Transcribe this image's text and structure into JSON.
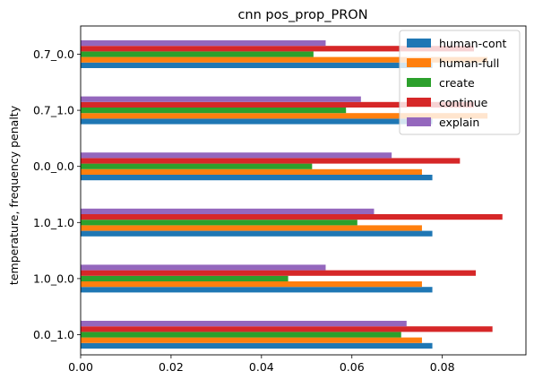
{
  "chart_data": {
    "type": "bar",
    "orientation": "horizontal",
    "title": "cnn pos_prop_PRON",
    "xlabel": "",
    "ylabel": "temperature, frequency penalty",
    "categories": [
      "0.0_1.0",
      "1.0_0.0",
      "1.0_1.0",
      "0.0_0.0",
      "0.7_1.0",
      "0.7_0.0"
    ],
    "xlim": [
      0,
      0.0985
    ],
    "xticks": [
      0.0,
      0.02,
      0.04,
      0.06,
      0.08
    ],
    "xtick_labels": [
      "0.00",
      "0.02",
      "0.04",
      "0.06",
      "0.08"
    ],
    "grid": false,
    "legend_position": "top-right",
    "series": [
      {
        "name": "human-cont",
        "color": "#1f77b4",
        "values": [
          0.0778,
          0.0778,
          0.0778,
          0.0778,
          0.0778,
          0.0778
        ]
      },
      {
        "name": "human-full",
        "color": "#ff7f0e",
        "values": [
          0.0755,
          0.0755,
          0.0755,
          0.0755,
          0.09,
          0.09
        ]
      },
      {
        "name": "create",
        "color": "#2ca02c",
        "values": [
          0.0709,
          0.0459,
          0.0612,
          0.0512,
          0.0587,
          0.0515
        ]
      },
      {
        "name": "continue",
        "color": "#d62728",
        "values": [
          0.0911,
          0.0874,
          0.0933,
          0.0839,
          0.087,
          0.087
        ]
      },
      {
        "name": "explain",
        "color": "#9467bd",
        "values": [
          0.0721,
          0.0542,
          0.0649,
          0.0688,
          0.062,
          0.0542
        ]
      }
    ]
  }
}
